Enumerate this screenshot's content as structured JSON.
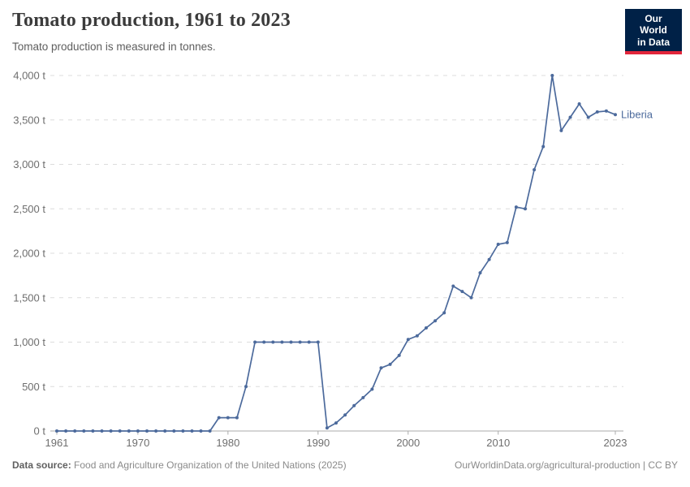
{
  "header": {
    "title": "Tomato production, 1961 to 2023",
    "subtitle": "Tomato production is measured in tonnes.",
    "logo": {
      "line1": "Our World",
      "line2": "in Data"
    }
  },
  "footer": {
    "datasource_label": "Data source:",
    "datasource_text": " Food and Agriculture Organization of the United Nations (2025)",
    "right_text": "OurWorldinData.org/agricultural-production | CC BY"
  },
  "colors": {
    "line": "#4c6a9c",
    "grid": "#dcdcdc",
    "axis": "#ababab",
    "tick_label": "#6e6e6e",
    "title": "#3b3b3b",
    "subtitle": "#5e5e5e",
    "footer": "#8a8a8a",
    "logo_bg": "#002147",
    "logo_accent": "#e2263b"
  },
  "chart_data": {
    "type": "line",
    "title": "Tomato production, 1961 to 2023",
    "subtitle": "Tomato production is measured in tonnes.",
    "unit": "t",
    "grid": "horizontal-dashed",
    "legend_position": "end-of-line-label",
    "xlabel": "",
    "ylabel": "",
    "xlim": [
      1961,
      2023
    ],
    "ylim": [
      0,
      4000
    ],
    "xticks": [
      1961,
      1970,
      1980,
      1990,
      2000,
      2010,
      2023
    ],
    "yticks": [
      0,
      500,
      1000,
      1500,
      2000,
      2500,
      3000,
      3500,
      4000
    ],
    "ytick_suffix": " t",
    "series": [
      {
        "name": "Liberia",
        "color": "#4c6a9c",
        "x": [
          1961,
          1962,
          1963,
          1964,
          1965,
          1966,
          1967,
          1968,
          1969,
          1970,
          1971,
          1972,
          1973,
          1974,
          1975,
          1976,
          1977,
          1978,
          1979,
          1980,
          1981,
          1982,
          1983,
          1984,
          1985,
          1986,
          1987,
          1988,
          1989,
          1990,
          1991,
          1992,
          1993,
          1994,
          1995,
          1996,
          1997,
          1998,
          1999,
          2000,
          2001,
          2002,
          2003,
          2004,
          2005,
          2006,
          2007,
          2008,
          2009,
          2010,
          2011,
          2012,
          2013,
          2014,
          2015,
          2016,
          2017,
          2018,
          2019,
          2020,
          2021,
          2022,
          2023
        ],
        "values": [
          0,
          0,
          0,
          0,
          0,
          0,
          0,
          0,
          0,
          0,
          0,
          0,
          0,
          0,
          0,
          0,
          0,
          0,
          150,
          150,
          150,
          500,
          1000,
          1000,
          1000,
          1000,
          1000,
          1000,
          1000,
          1000,
          35,
          90,
          180,
          285,
          375,
          470,
          710,
          750,
          850,
          1030,
          1070,
          1160,
          1240,
          1330,
          1630,
          1570,
          1500,
          1780,
          1930,
          2100,
          2120,
          2520,
          2500,
          2940,
          3200,
          4000,
          3380,
          3530,
          3680,
          3530,
          3590,
          3600,
          3560
        ]
      }
    ]
  }
}
